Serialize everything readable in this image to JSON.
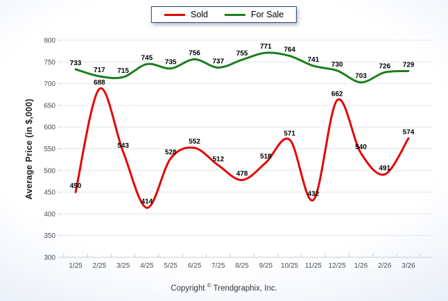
{
  "chart_data": {
    "type": "line",
    "title": "",
    "xlabel": "",
    "ylabel": "Average Price (in $,000)",
    "ylim": [
      300,
      800
    ],
    "ytick_step": 50,
    "yticks": [
      300,
      350,
      400,
      450,
      500,
      550,
      600,
      650,
      700,
      750,
      800
    ],
    "grid": true,
    "legend_position": "top-center",
    "categories": [
      "1/25",
      "2/25",
      "3/25",
      "4/25",
      "5/25",
      "6/25",
      "7/25",
      "8/25",
      "9/25",
      "10/25",
      "11/25",
      "12/25",
      "1/26",
      "2/26",
      "3/26"
    ],
    "series": [
      {
        "name": "Sold",
        "color": "#e60000",
        "values": [
          450,
          688,
          543,
          414,
          528,
          552,
          512,
          478,
          518,
          571,
          432,
          662,
          540,
          491,
          574
        ]
      },
      {
        "name": "For Sale",
        "color": "#1b7e1b",
        "values": [
          733,
          717,
          715,
          745,
          735,
          756,
          737,
          755,
          771,
          764,
          741,
          730,
          703,
          726,
          729
        ]
      }
    ]
  },
  "footer": {
    "prefix": "Copyright",
    "symbol": "©",
    "suffix": "Trendgraphix, Inc."
  },
  "colors": {
    "grid": "#e4e6ec",
    "axis": "#c6cbd4",
    "tick_label": "#474c56",
    "data_label": "#000000",
    "legend_border": "#24427c"
  }
}
